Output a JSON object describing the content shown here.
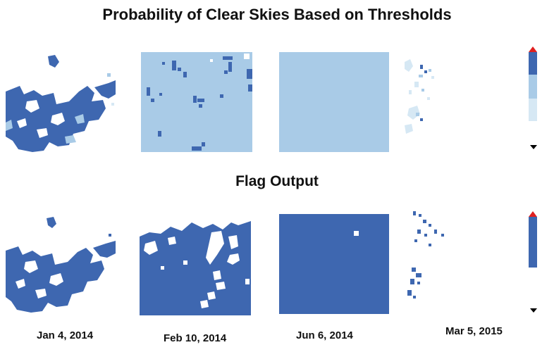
{
  "titles": {
    "probability": "Probability of Clear Skies Based on Thresholds",
    "flag": "Flag Output"
  },
  "dates": [
    "Jan 4, 2014",
    "Feb 10, 2014",
    "Jun 6, 2014",
    "Mar 5, 2015"
  ],
  "colors": {
    "dark_blue": "#3e67b0",
    "light_blue": "#a9cbe7",
    "pale_blue": "#d6e8f4",
    "marker_red": "#e02020",
    "marker_black": "#000000"
  }
}
